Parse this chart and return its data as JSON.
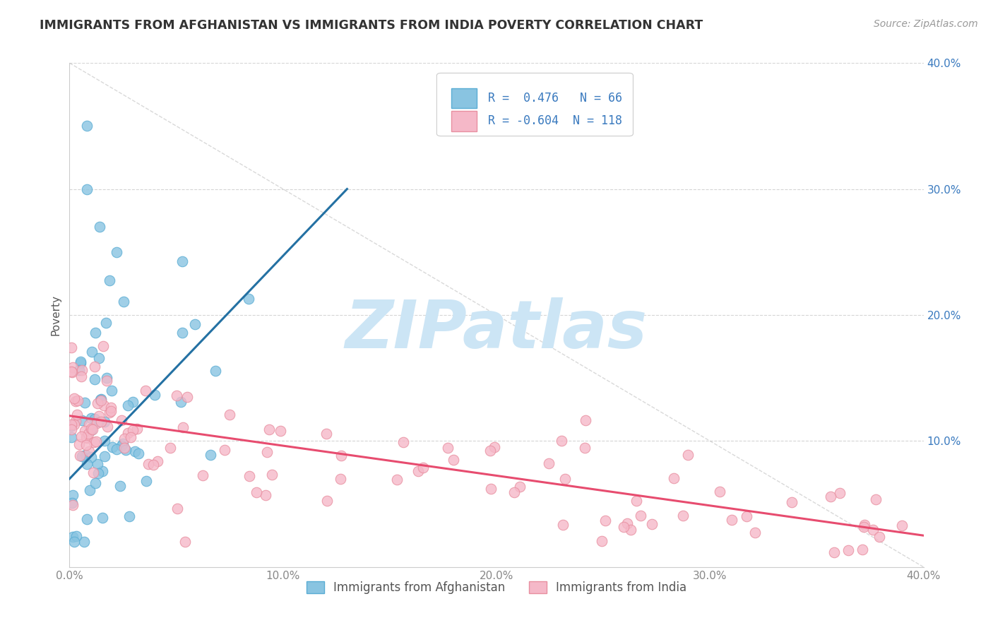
{
  "title": "IMMIGRANTS FROM AFGHANISTAN VS IMMIGRANTS FROM INDIA POVERTY CORRELATION CHART",
  "source": "Source: ZipAtlas.com",
  "ylabel": "Poverty",
  "xlim": [
    0.0,
    0.4
  ],
  "ylim": [
    0.0,
    0.4
  ],
  "xticks": [
    0.0,
    0.1,
    0.2,
    0.3,
    0.4
  ],
  "yticks": [
    0.0,
    0.1,
    0.2,
    0.3,
    0.4
  ],
  "xtick_labels": [
    "0.0%",
    "10.0%",
    "20.0%",
    "30.0%",
    "40.0%"
  ],
  "ytick_labels_left": [
    "",
    "",
    "",
    "",
    ""
  ],
  "ytick_labels_right": [
    "",
    "10.0%",
    "20.0%",
    "30.0%",
    "40.0%"
  ],
  "afg_R": 0.476,
  "afg_N": 66,
  "india_R": -0.604,
  "india_N": 118,
  "afg_scatter_color": "#89c4e1",
  "afg_edge_color": "#5aadd4",
  "india_scatter_color": "#f5b8c8",
  "india_edge_color": "#e88fa0",
  "trend_afg_color": "#2471a3",
  "trend_india_color": "#e74c6f",
  "diagonal_color": "#c0c0c0",
  "background_color": "#ffffff",
  "grid_color": "#d5d5d5",
  "watermark_color": "#cce5f5",
  "watermark_text": "ZIPatlas",
  "title_color": "#333333",
  "axis_label_color": "#555555",
  "tick_color_left": "#888888",
  "tick_color_right": "#3a7abf",
  "legend_text_color": "#3a7abf",
  "legend_border_color": "#cccccc",
  "afg_trend_x_start": 0.0,
  "afg_trend_y_start": 0.07,
  "afg_trend_x_end": 0.13,
  "afg_trend_y_end": 0.3,
  "india_trend_x_start": 0.0,
  "india_trend_y_start": 0.12,
  "india_trend_x_end": 0.4,
  "india_trend_y_end": 0.025
}
